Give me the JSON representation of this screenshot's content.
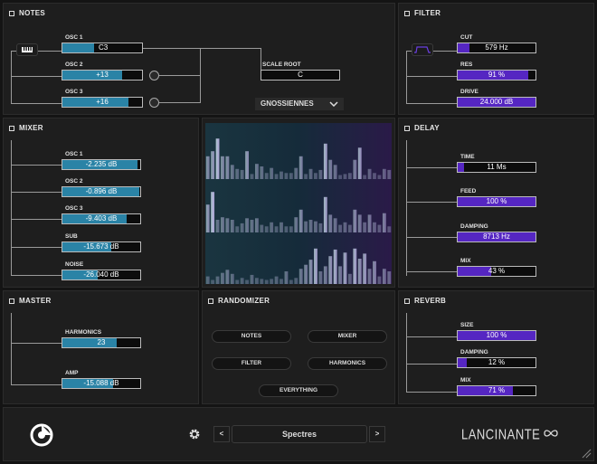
{
  "notes": {
    "title": "NOTES",
    "osc1": {
      "label": "OSC 1",
      "value": "C3",
      "fill": 0.4
    },
    "osc2": {
      "label": "OSC 2",
      "value": "+13",
      "fill": 0.75
    },
    "osc3": {
      "label": "OSC 3",
      "value": "+16",
      "fill": 0.83
    },
    "scale_root": {
      "label": "SCALE ROOT",
      "value": "C"
    },
    "scale": {
      "value": "GNOSSIENNES"
    }
  },
  "filter": {
    "title": "FILTER",
    "cut": {
      "label": "CUT",
      "value": "579 Hz",
      "fill": 0.15
    },
    "res": {
      "label": "RES",
      "value": "91 %",
      "fill": 0.91
    },
    "drive": {
      "label": "DRIVE",
      "value": "24.000 dB",
      "fill": 1.0
    }
  },
  "mixer": {
    "title": "MIXER",
    "channels": [
      {
        "label": "OSC 1",
        "value": "-2.235 dB",
        "fill": 0.96
      },
      {
        "label": "OSC 2",
        "value": "-0.896 dB",
        "fill": 0.99
      },
      {
        "label": "OSC 3",
        "value": "-9.403 dB",
        "fill": 0.82
      },
      {
        "label": "SUB",
        "value": "-15.673 dB",
        "fill": 0.63
      },
      {
        "label": "NOISE",
        "value": "-26.040 dB",
        "fill": 0.45
      }
    ]
  },
  "visualizer": {
    "rows": [
      [
        0.45,
        0.55,
        0.8,
        0.45,
        0.45,
        0.28,
        0.2,
        0.18,
        0.55,
        0.1,
        0.3,
        0.25,
        0.12,
        0.22,
        0.1,
        0.15,
        0.12,
        0.12,
        0.22,
        0.45,
        0.1,
        0.2,
        0.12,
        0.18,
        0.7,
        0.38,
        0.28,
        0.08,
        0.1,
        0.12,
        0.38,
        0.62,
        0.08,
        0.2,
        0.12,
        0.08,
        0.2,
        0.18
      ],
      [
        0.55,
        0.8,
        0.25,
        0.3,
        0.28,
        0.25,
        0.12,
        0.18,
        0.28,
        0.25,
        0.28,
        0.15,
        0.12,
        0.2,
        0.12,
        0.2,
        0.12,
        0.12,
        0.3,
        0.45,
        0.22,
        0.25,
        0.22,
        0.18,
        0.7,
        0.35,
        0.28,
        0.15,
        0.2,
        0.15,
        0.45,
        0.35,
        0.2,
        0.35,
        0.2,
        0.15,
        0.38,
        0.12
      ],
      [
        0.15,
        0.08,
        0.15,
        0.22,
        0.28,
        0.2,
        0.08,
        0.12,
        0.08,
        0.18,
        0.12,
        0.1,
        0.08,
        0.1,
        0.15,
        0.1,
        0.25,
        0.08,
        0.12,
        0.3,
        0.38,
        0.48,
        0.7,
        0.25,
        0.35,
        0.55,
        0.68,
        0.35,
        0.62,
        0.2,
        0.7,
        0.5,
        0.6,
        0.3,
        0.45,
        0.15,
        0.3,
        0.25
      ]
    ]
  },
  "delay": {
    "title": "DELAY",
    "time": {
      "label": "TIME",
      "value": "11 Ms",
      "fill": 0.08
    },
    "feed": {
      "label": "FEED",
      "value": "100 %",
      "fill": 1.0
    },
    "damping": {
      "label": "DAMPING",
      "value": "8713 Hz",
      "fill": 1.0
    },
    "mix": {
      "label": "MIX",
      "value": "43 %",
      "fill": 0.43
    }
  },
  "master": {
    "title": "MASTER",
    "harmonics": {
      "label": "HARMONICS",
      "value": "23",
      "fill": 0.7
    },
    "amp": {
      "label": "AMP",
      "value": "-15.088 dB",
      "fill": 0.65
    }
  },
  "randomizer": {
    "title": "RANDOMIZER",
    "notes": "NOTES",
    "mixer": "MIXER",
    "filter": "FILTER",
    "harmonics": "HARMONICS",
    "everything": "EVERYTHING"
  },
  "reverb": {
    "title": "REVERB",
    "size": {
      "label": "SIZE",
      "value": "100 %",
      "fill": 1.0
    },
    "damping": {
      "label": "DAMPING",
      "value": "12 %",
      "fill": 0.12
    },
    "mix": {
      "label": "MIX",
      "value": "71 %",
      "fill": 0.71
    }
  },
  "footer": {
    "preset_name": "Spectres",
    "prev": "<",
    "next": ">",
    "brand": "LANCINANTE"
  },
  "colors": {
    "mixer_fill": "#2a83a6",
    "fx_fill": "#5526c2"
  }
}
